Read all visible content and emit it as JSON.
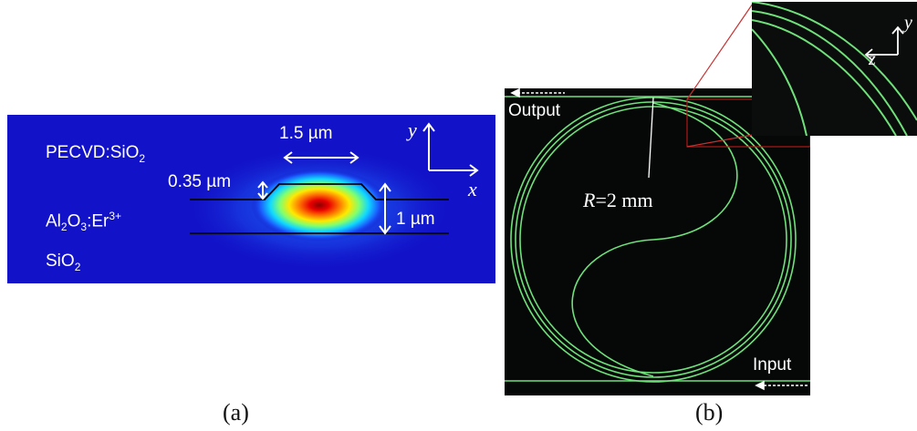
{
  "panel_a": {
    "layer_top": "PECVD:SiO",
    "layer_top_sub": "2",
    "layer_mid_base": "Al",
    "layer_mid_sub1": "2",
    "layer_mid_o": "O",
    "layer_mid_sub2": "3",
    "layer_mid_rest": ":Er",
    "layer_mid_sup": "3+",
    "layer_bottom": "SiO",
    "layer_bottom_sub": "2",
    "dim_width": "1.5 µm",
    "dim_step": "0.35 µm",
    "dim_height": "1 µm",
    "axis_y": "y",
    "axis_x": "x",
    "caption": "(a)"
  },
  "panel_b": {
    "output_label": "Output",
    "input_label": "Input",
    "radius_label_r": "R",
    "radius_label_rest": "=2 mm",
    "inset_axis_z": "z",
    "inset_axis_y": "y",
    "caption": "(b)"
  },
  "colors": {
    "field_background": "#1212c8",
    "waveguide_green": "#6fe07a",
    "zoom_box": "#b01818",
    "chip_background": "#050807"
  }
}
